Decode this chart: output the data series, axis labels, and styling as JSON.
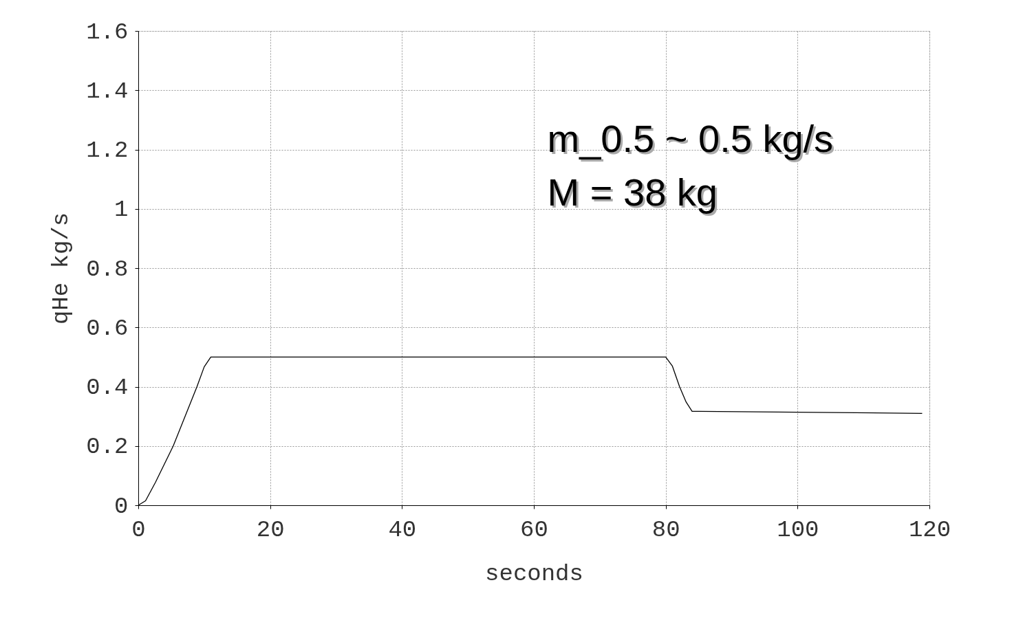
{
  "chart_data": {
    "type": "line",
    "xlabel": "seconds",
    "ylabel": "qHe  kg/s",
    "x": [
      0,
      1.1,
      2.6,
      5.3,
      8.9,
      10,
      11,
      80,
      81,
      82.1,
      83.1,
      84,
      118.9
    ],
    "series": [
      {
        "color": "#000000",
        "values": [
          0,
          0.015,
          0.077,
          0.2,
          0.4,
          0.467,
          0.5,
          0.5,
          0.47,
          0.4,
          0.348,
          0.317,
          0.31
        ]
      }
    ],
    "xlim": [
      0,
      120
    ],
    "xticks": [
      0,
      20,
      40,
      60,
      80,
      100,
      120
    ],
    "ylim": [
      0,
      1.6
    ],
    "yticks": [
      0,
      0.2,
      0.4,
      0.6,
      0.8,
      1,
      1.2,
      1.4,
      1.6
    ],
    "grid": true,
    "marker": "none",
    "line_style": "solid",
    "annotations": [
      "m_0.5 ~ 0.5 kg/s",
      "M = 38 kg"
    ]
  }
}
